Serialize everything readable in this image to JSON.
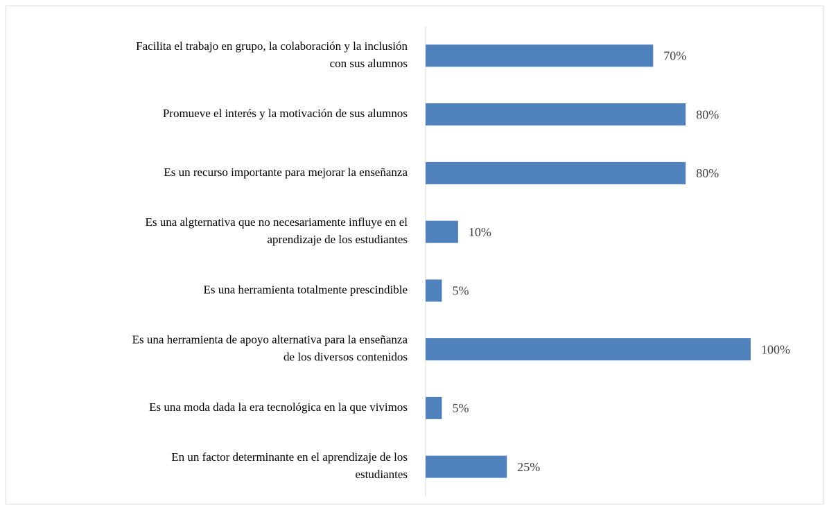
{
  "chart_data": {
    "type": "bar",
    "orientation": "horizontal",
    "categories": [
      "Facilita el trabajo en grupo, la colaboración y la inclusión\ncon sus alumnos",
      "Promueve el interés y la motivación de sus alumnos",
      "Es un recurso importante para mejorar la enseñanza",
      "Es una algternativa que no necesariamente influye en el\naprendizaje de los estudiantes",
      "Es una herramienta totalmente prescindible",
      "Es una herramienta de apoyo alternativa para la enseñanza\nde los diversos contenidos",
      "Es una moda dada la era tecnológica en la que vivimos",
      "En un factor determinante en el aprendizaje de los\nestudiantes"
    ],
    "values": [
      70,
      80,
      80,
      10,
      5,
      100,
      5,
      25
    ],
    "value_labels": [
      "70%",
      "80%",
      "80%",
      "10%",
      "5%",
      "100%",
      "5%",
      "25%"
    ],
    "color": "#4f81bd",
    "xlim": [
      0,
      100
    ]
  }
}
